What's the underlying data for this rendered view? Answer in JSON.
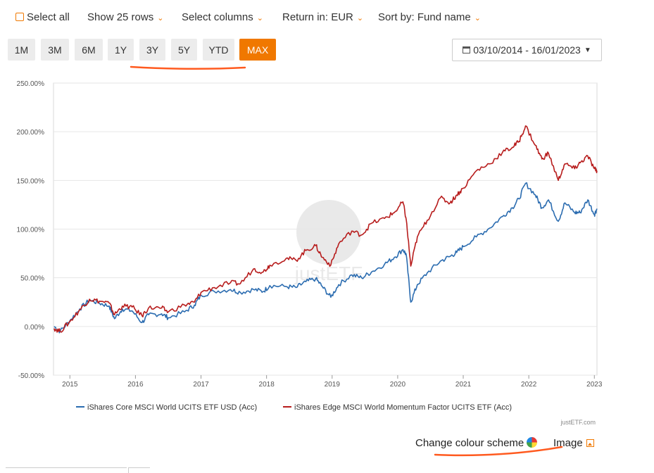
{
  "toolbar": {
    "select_all": "Select all",
    "show_rows": "Show 25 rows",
    "select_columns": "Select columns",
    "return_in": "Return in: EUR",
    "sort_by": "Sort by: Fund name",
    "chevron": "⌄"
  },
  "periods": [
    "1M",
    "3M",
    "6M",
    "1Y",
    "3Y",
    "5Y",
    "YTD",
    "MAX"
  ],
  "active_period": "MAX",
  "date_range": "03/10/2014 - 16/01/2023",
  "watermark": "justETF",
  "credit": "justETF.com",
  "links": {
    "change_colour": "Change colour scheme",
    "image": "Image"
  },
  "colors": {
    "accent": "#f07800",
    "series_blue": "#2b6cb0",
    "series_red": "#b71c1c"
  },
  "chart_data": {
    "type": "line",
    "title": "",
    "xlabel": "",
    "ylabel": "",
    "ylim": [
      -50,
      250
    ],
    "xlim": [
      2014.75,
      2023.04
    ],
    "y_ticks": [
      250,
      200,
      150,
      100,
      50,
      0,
      -50
    ],
    "y_tick_labels": [
      "250.00%",
      "200.00%",
      "150.00%",
      "100.00%",
      "50.00%",
      "0.00%",
      "-50.00%"
    ],
    "x_ticks": [
      2015,
      2016,
      2017,
      2018,
      2019,
      2020,
      2021,
      2022,
      2023
    ],
    "x_tick_labels": [
      "2015",
      "2016",
      "2017",
      "2018",
      "2019",
      "2020",
      "2021",
      "2022",
      "2023"
    ],
    "legend_position": "bottom",
    "series": [
      {
        "name": "iShares Core MSCI World UCITS ETF USD (Acc)",
        "color": "#2b6cb0",
        "points": [
          [
            2014.76,
            0
          ],
          [
            2014.85,
            -5
          ],
          [
            2015.0,
            6
          ],
          [
            2015.15,
            18
          ],
          [
            2015.3,
            27
          ],
          [
            2015.45,
            24
          ],
          [
            2015.6,
            21
          ],
          [
            2015.68,
            8
          ],
          [
            2015.8,
            18
          ],
          [
            2015.95,
            16
          ],
          [
            2016.1,
            4
          ],
          [
            2016.2,
            12
          ],
          [
            2016.4,
            13
          ],
          [
            2016.5,
            9
          ],
          [
            2016.75,
            15
          ],
          [
            2016.9,
            22
          ],
          [
            2017.0,
            32
          ],
          [
            2017.2,
            36
          ],
          [
            2017.45,
            38
          ],
          [
            2017.6,
            35
          ],
          [
            2017.8,
            38
          ],
          [
            2017.95,
            36
          ],
          [
            2018.05,
            42
          ],
          [
            2018.3,
            41
          ],
          [
            2018.45,
            40
          ],
          [
            2018.6,
            46
          ],
          [
            2018.75,
            49
          ],
          [
            2018.85,
            41
          ],
          [
            2018.98,
            30
          ],
          [
            2019.1,
            43
          ],
          [
            2019.3,
            53
          ],
          [
            2019.45,
            50
          ],
          [
            2019.6,
            56
          ],
          [
            2019.8,
            64
          ],
          [
            2019.95,
            71
          ],
          [
            2020.08,
            79
          ],
          [
            2020.13,
            74
          ],
          [
            2020.2,
            25
          ],
          [
            2020.3,
            43
          ],
          [
            2020.45,
            55
          ],
          [
            2020.65,
            67
          ],
          [
            2020.8,
            72
          ],
          [
            2020.9,
            76
          ],
          [
            2021.0,
            82
          ],
          [
            2021.2,
            92
          ],
          [
            2021.4,
            101
          ],
          [
            2021.6,
            113
          ],
          [
            2021.75,
            122
          ],
          [
            2021.85,
            131
          ],
          [
            2021.95,
            147
          ],
          [
            2022.1,
            135
          ],
          [
            2022.2,
            122
          ],
          [
            2022.3,
            130
          ],
          [
            2022.45,
            108
          ],
          [
            2022.55,
            127
          ],
          [
            2022.7,
            117
          ],
          [
            2022.78,
            117
          ],
          [
            2022.9,
            130
          ],
          [
            2023.0,
            115
          ],
          [
            2023.04,
            121
          ]
        ]
      },
      {
        "name": "iShares Edge MSCI World Momentum Factor UCITS ETF (Acc)",
        "color": "#b71c1c",
        "points": [
          [
            2014.76,
            -2
          ],
          [
            2014.85,
            -5
          ],
          [
            2015.0,
            5
          ],
          [
            2015.15,
            17
          ],
          [
            2015.3,
            28
          ],
          [
            2015.45,
            26
          ],
          [
            2015.6,
            24
          ],
          [
            2015.68,
            12
          ],
          [
            2015.8,
            21
          ],
          [
            2015.95,
            20
          ],
          [
            2016.1,
            11
          ],
          [
            2016.2,
            19
          ],
          [
            2016.4,
            19
          ],
          [
            2016.5,
            15
          ],
          [
            2016.75,
            22
          ],
          [
            2016.9,
            25
          ],
          [
            2017.0,
            35
          ],
          [
            2017.2,
            40
          ],
          [
            2017.45,
            45
          ],
          [
            2017.6,
            44
          ],
          [
            2017.8,
            59
          ],
          [
            2017.95,
            56
          ],
          [
            2018.05,
            63
          ],
          [
            2018.3,
            70
          ],
          [
            2018.45,
            68
          ],
          [
            2018.6,
            78
          ],
          [
            2018.75,
            83
          ],
          [
            2018.85,
            71
          ],
          [
            2018.98,
            63
          ],
          [
            2019.1,
            85
          ],
          [
            2019.3,
            98
          ],
          [
            2019.45,
            94
          ],
          [
            2019.6,
            106
          ],
          [
            2019.8,
            111
          ],
          [
            2019.95,
            117
          ],
          [
            2020.08,
            128
          ],
          [
            2020.13,
            110
          ],
          [
            2020.2,
            62
          ],
          [
            2020.3,
            92
          ],
          [
            2020.45,
            109
          ],
          [
            2020.65,
            132
          ],
          [
            2020.8,
            127
          ],
          [
            2020.9,
            135
          ],
          [
            2021.0,
            142
          ],
          [
            2021.2,
            160
          ],
          [
            2021.4,
            167
          ],
          [
            2021.6,
            179
          ],
          [
            2021.75,
            184
          ],
          [
            2021.85,
            190
          ],
          [
            2021.95,
            206
          ],
          [
            2022.1,
            186
          ],
          [
            2022.2,
            172
          ],
          [
            2022.3,
            178
          ],
          [
            2022.45,
            150
          ],
          [
            2022.55,
            167
          ],
          [
            2022.7,
            162
          ],
          [
            2022.78,
            168
          ],
          [
            2022.9,
            175
          ],
          [
            2023.0,
            162
          ],
          [
            2023.04,
            160
          ]
        ]
      }
    ]
  }
}
